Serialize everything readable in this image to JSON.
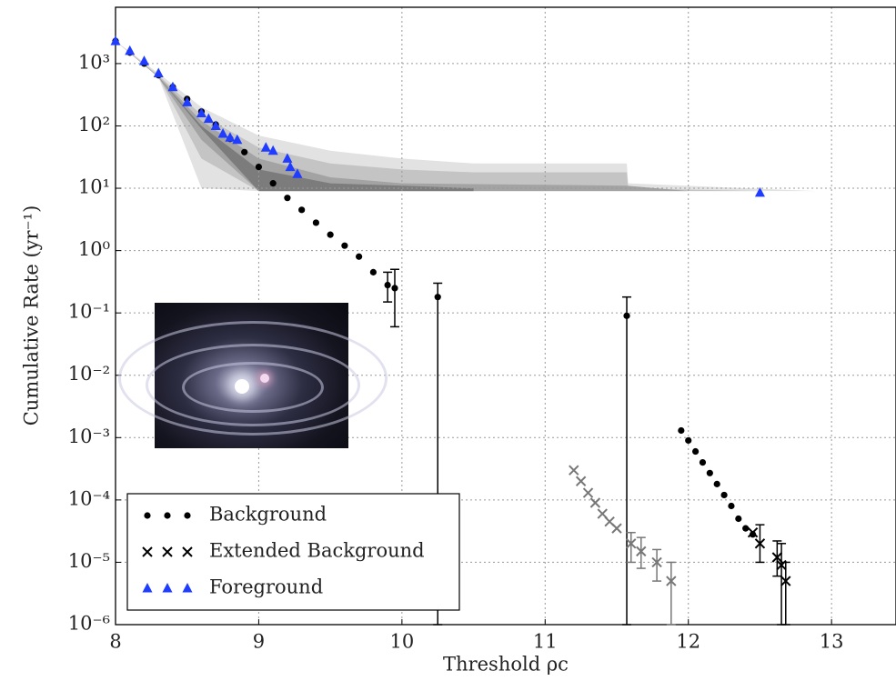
{
  "chart_data": {
    "type": "scatter",
    "x_label": "Threshold ρc",
    "y_label": "Cumulative Rate (yr⁻¹)",
    "xlim": [
      8,
      13.45
    ],
    "ylim": [
      1e-06,
      8000
    ],
    "y_scale": "log",
    "grid": true,
    "legend": "lower left",
    "xticks": [
      8,
      9,
      10,
      11,
      12,
      13
    ],
    "yticks": [
      {
        "value": 1e-06,
        "label": "10⁻⁶"
      },
      {
        "value": 1e-05,
        "label": "10⁻⁵"
      },
      {
        "value": 0.0001,
        "label": "10⁻⁴"
      },
      {
        "value": 0.001,
        "label": "10⁻³"
      },
      {
        "value": 0.01,
        "label": "10⁻²"
      },
      {
        "value": 0.1,
        "label": "10⁻¹"
      },
      {
        "value": 1,
        "label": "10⁰"
      },
      {
        "value": 10,
        "label": "10¹"
      },
      {
        "value": 100,
        "label": "10²"
      },
      {
        "value": 1000,
        "label": "10³"
      }
    ],
    "bands": [
      {
        "color": "#e2e2e2",
        "x": [
          8.0,
          8.3,
          8.6,
          9.0,
          9.5,
          10.0,
          10.5,
          11.57,
          11.58,
          12.9
        ],
        "upper": [
          2300,
          700,
          200,
          70,
          40,
          30,
          25,
          25,
          12,
          9
        ],
        "lower": [
          2300,
          600,
          10,
          9,
          9,
          9,
          9,
          9,
          9,
          9
        ]
      },
      {
        "color": "#c4c4c4",
        "x": [
          8.0,
          8.3,
          8.6,
          9.0,
          9.5,
          10.0,
          10.5,
          11.57,
          11.58,
          12.5
        ],
        "upper": [
          2300,
          650,
          150,
          45,
          25,
          20,
          18,
          18,
          10,
          9
        ],
        "lower": [
          2300,
          610,
          30,
          9,
          9,
          9,
          9,
          9,
          9,
          9
        ]
      },
      {
        "color": "#a3a3a3",
        "x": [
          8.0,
          8.3,
          8.6,
          9.0,
          9.5,
          10.0,
          11.57,
          12.0
        ],
        "upper": [
          2300,
          620,
          120,
          30,
          15,
          12,
          11,
          9
        ],
        "lower": [
          2300,
          600,
          60,
          9,
          9,
          9,
          9,
          9
        ]
      },
      {
        "color": "#7c7c7c",
        "x": [
          8.3,
          8.6,
          9.0,
          9.5,
          10.0,
          10.5
        ],
        "upper": [
          600,
          100,
          20,
          12,
          11,
          10
        ],
        "lower": [
          600,
          90,
          9,
          9,
          9,
          9
        ]
      }
    ],
    "series": [
      {
        "name": "Background",
        "marker": "dot",
        "color": "#000000",
        "x": [
          8.0,
          8.1,
          8.2,
          8.3,
          8.4,
          8.5,
          8.6,
          8.7,
          8.8,
          8.9,
          9.0,
          9.1,
          9.2,
          9.3,
          9.4,
          9.5,
          9.6,
          9.7,
          9.8,
          9.9,
          9.95,
          10.25,
          11.57,
          11.95,
          12.0,
          12.05,
          12.1,
          12.15,
          12.2,
          12.25,
          12.3,
          12.35,
          12.4,
          12.45
        ],
        "values": [
          2300,
          1500,
          1000,
          650,
          420,
          270,
          170,
          105,
          62,
          38,
          22,
          12,
          7,
          4.5,
          2.8,
          1.8,
          1.2,
          0.8,
          0.45,
          0.28,
          0.25,
          0.18,
          0.09,
          0.0013,
          0.0009,
          0.0006,
          0.0004,
          0.00027,
          0.00018,
          0.00012,
          8e-05,
          5e-05,
          3.5e-05,
          2.8e-05
        ],
        "yerr_low": [
          null,
          null,
          null,
          null,
          null,
          null,
          null,
          null,
          null,
          null,
          null,
          null,
          null,
          null,
          null,
          null,
          null,
          null,
          null,
          0.15,
          0.06,
          1e-06,
          1e-06,
          null,
          null,
          null,
          null,
          null,
          null,
          null,
          null,
          null,
          null,
          null
        ],
        "yerr_high": [
          null,
          null,
          null,
          null,
          null,
          null,
          null,
          null,
          null,
          null,
          null,
          null,
          null,
          null,
          null,
          null,
          null,
          null,
          null,
          0.45,
          0.5,
          0.3,
          0.18,
          null,
          null,
          null,
          null,
          null,
          null,
          null,
          null,
          null,
          null,
          null
        ]
      },
      {
        "name": "Extended Background",
        "marker": "x",
        "color": "#000000",
        "x": [
          11.2,
          11.25,
          11.3,
          11.35,
          11.4,
          11.45,
          11.5,
          11.6,
          11.67,
          11.78,
          11.88,
          12.45,
          12.5,
          12.62,
          12.65,
          12.68
        ],
        "values": [
          0.0003,
          0.0002,
          0.00013,
          9e-05,
          6e-05,
          4.5e-05,
          3.5e-05,
          2e-05,
          1.5e-05,
          1e-05,
          5e-06,
          3e-05,
          2e-05,
          1.2e-05,
          9e-06,
          5e-06
        ],
        "point_colors": [
          "#777777",
          "#777777",
          "#777777",
          "#777777",
          "#777777",
          "#777777",
          "#777777",
          "#777777",
          "#777777",
          "#777777",
          "#777777",
          "#000000",
          "#000000",
          "#000000",
          "#000000",
          "#000000"
        ],
        "yerr_low": [
          null,
          null,
          null,
          null,
          null,
          null,
          null,
          1e-05,
          8e-06,
          5e-06,
          1e-06,
          null,
          1e-05,
          6e-06,
          1e-06,
          1e-06
        ],
        "yerr_high": [
          null,
          null,
          null,
          null,
          null,
          null,
          null,
          3e-05,
          2.5e-05,
          1.6e-05,
          1e-05,
          null,
          4e-05,
          2.2e-05,
          2e-05,
          1e-05
        ]
      },
      {
        "name": "Foreground",
        "marker": "triangle",
        "color": "#1f3cff",
        "x": [
          8.0,
          8.1,
          8.2,
          8.3,
          8.4,
          8.5,
          8.6,
          8.65,
          8.7,
          8.75,
          8.8,
          8.85,
          9.05,
          9.1,
          9.2,
          9.22,
          9.27,
          12.5
        ],
        "values": [
          2300,
          1600,
          1100,
          700,
          420,
          240,
          160,
          130,
          100,
          75,
          65,
          60,
          45,
          40,
          30,
          22,
          17,
          8.5
        ]
      }
    ]
  }
}
